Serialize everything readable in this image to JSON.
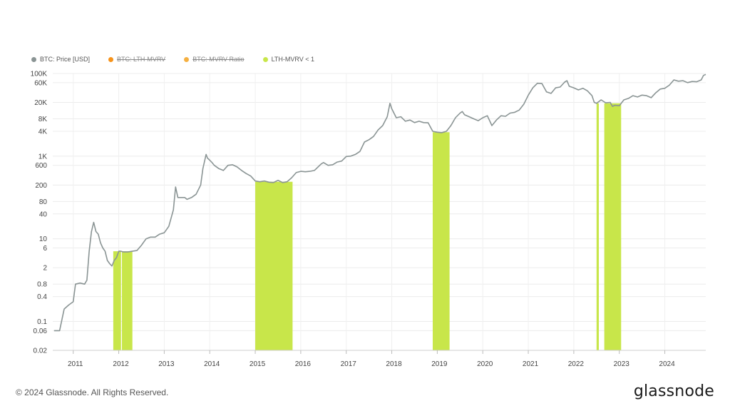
{
  "legend": [
    {
      "label": "BTC: Price [USD]",
      "color": "#8a9494",
      "disabled": false
    },
    {
      "label": "BTC: LTH-MVRV",
      "color": "#f7931a",
      "disabled": true
    },
    {
      "label": "BTC: MVRV Ratio",
      "color": "#f5b041",
      "disabled": true
    },
    {
      "label": "LTH-MVRV < 1",
      "color": "#c8e64a",
      "disabled": false
    }
  ],
  "footer": {
    "copyright": "© 2024 Glassnode. All Rights Reserved.",
    "logo": "glassnode"
  },
  "chart_data": {
    "type": "line",
    "y_scale": "log",
    "ylim": [
      0.02,
      100000
    ],
    "xlim": [
      2010.55,
      2024.9
    ],
    "grid": true,
    "yticks": [
      {
        "value": 100000,
        "label": "100K"
      },
      {
        "value": 60000,
        "label": "60K"
      },
      {
        "value": 20000,
        "label": "20K"
      },
      {
        "value": 8000,
        "label": "8K"
      },
      {
        "value": 4000,
        "label": "4K"
      },
      {
        "value": 1000,
        "label": "1K"
      },
      {
        "value": 600,
        "label": "600"
      },
      {
        "value": 200,
        "label": "200"
      },
      {
        "value": 80,
        "label": "80"
      },
      {
        "value": 40,
        "label": "40"
      },
      {
        "value": 10,
        "label": "10"
      },
      {
        "value": 6,
        "label": "6"
      },
      {
        "value": 2,
        "label": "2"
      },
      {
        "value": 0.8,
        "label": "0.8"
      },
      {
        "value": 0.4,
        "label": "0.4"
      },
      {
        "value": 0.1,
        "label": "0.1"
      },
      {
        "value": 0.06,
        "label": "0.06"
      },
      {
        "value": 0.02,
        "label": "0.02"
      }
    ],
    "xticks": [
      {
        "value": 2011,
        "label": "2011"
      },
      {
        "value": 2012,
        "label": "2012"
      },
      {
        "value": 2013,
        "label": "2013"
      },
      {
        "value": 2014,
        "label": "2014"
      },
      {
        "value": 2015,
        "label": "2015"
      },
      {
        "value": 2016,
        "label": "2016"
      },
      {
        "value": 2017,
        "label": "2017"
      },
      {
        "value": 2018,
        "label": "2018"
      },
      {
        "value": 2019,
        "label": "2019"
      },
      {
        "value": 2020,
        "label": "2020"
      },
      {
        "value": 2021,
        "label": "2021"
      },
      {
        "value": 2022,
        "label": "2022"
      },
      {
        "value": 2023,
        "label": "2023"
      },
      {
        "value": 2024,
        "label": "2024"
      }
    ],
    "series": [
      {
        "name": "BTC: Price [USD]",
        "color": "#8a9494",
        "points": [
          [
            2010.58,
            0.06
          ],
          [
            2010.7,
            0.06
          ],
          [
            2010.8,
            0.2
          ],
          [
            2010.9,
            0.25
          ],
          [
            2011.0,
            0.3
          ],
          [
            2011.05,
            0.8
          ],
          [
            2011.15,
            0.85
          ],
          [
            2011.25,
            0.8
          ],
          [
            2011.3,
            1
          ],
          [
            2011.35,
            5
          ],
          [
            2011.4,
            15
          ],
          [
            2011.45,
            25
          ],
          [
            2011.5,
            15
          ],
          [
            2011.55,
            13
          ],
          [
            2011.6,
            8
          ],
          [
            2011.65,
            6
          ],
          [
            2011.7,
            5
          ],
          [
            2011.75,
            3
          ],
          [
            2011.8,
            2.5
          ],
          [
            2011.85,
            2.2
          ],
          [
            2011.9,
            3
          ],
          [
            2011.95,
            3.5
          ],
          [
            2012.0,
            5
          ],
          [
            2012.05,
            5
          ],
          [
            2012.1,
            4.8
          ],
          [
            2012.2,
            4.8
          ],
          [
            2012.3,
            5
          ],
          [
            2012.4,
            5.2
          ],
          [
            2012.5,
            7
          ],
          [
            2012.6,
            10
          ],
          [
            2012.7,
            11
          ],
          [
            2012.8,
            11
          ],
          [
            2012.9,
            13
          ],
          [
            2013.0,
            14
          ],
          [
            2013.1,
            20
          ],
          [
            2013.2,
            50
          ],
          [
            2013.25,
            180
          ],
          [
            2013.3,
            100
          ],
          [
            2013.35,
            100
          ],
          [
            2013.45,
            100
          ],
          [
            2013.5,
            90
          ],
          [
            2013.6,
            100
          ],
          [
            2013.7,
            120
          ],
          [
            2013.8,
            200
          ],
          [
            2013.85,
            500
          ],
          [
            2013.92,
            1100
          ],
          [
            2013.95,
            900
          ],
          [
            2014.0,
            800
          ],
          [
            2014.05,
            700
          ],
          [
            2014.1,
            600
          ],
          [
            2014.2,
            500
          ],
          [
            2014.3,
            450
          ],
          [
            2014.4,
            600
          ],
          [
            2014.5,
            620
          ],
          [
            2014.6,
            550
          ],
          [
            2014.7,
            450
          ],
          [
            2014.8,
            380
          ],
          [
            2014.9,
            330
          ],
          [
            2015.0,
            250
          ],
          [
            2015.1,
            240
          ],
          [
            2015.2,
            250
          ],
          [
            2015.3,
            235
          ],
          [
            2015.4,
            230
          ],
          [
            2015.5,
            260
          ],
          [
            2015.6,
            230
          ],
          [
            2015.7,
            240
          ],
          [
            2015.8,
            300
          ],
          [
            2015.9,
            400
          ],
          [
            2016.0,
            430
          ],
          [
            2016.1,
            420
          ],
          [
            2016.2,
            430
          ],
          [
            2016.3,
            450
          ],
          [
            2016.45,
            650
          ],
          [
            2016.5,
            700
          ],
          [
            2016.6,
            600
          ],
          [
            2016.7,
            620
          ],
          [
            2016.8,
            720
          ],
          [
            2016.9,
            760
          ],
          [
            2017.0,
            980
          ],
          [
            2017.1,
            1000
          ],
          [
            2017.2,
            1100
          ],
          [
            2017.3,
            1300
          ],
          [
            2017.4,
            2200
          ],
          [
            2017.5,
            2500
          ],
          [
            2017.6,
            3000
          ],
          [
            2017.7,
            4300
          ],
          [
            2017.8,
            5500
          ],
          [
            2017.9,
            9000
          ],
          [
            2017.96,
            19000
          ],
          [
            2018.0,
            14000
          ],
          [
            2018.1,
            8500
          ],
          [
            2018.2,
            9000
          ],
          [
            2018.3,
            7000
          ],
          [
            2018.4,
            7500
          ],
          [
            2018.5,
            6500
          ],
          [
            2018.6,
            7000
          ],
          [
            2018.7,
            6500
          ],
          [
            2018.8,
            6400
          ],
          [
            2018.9,
            4000
          ],
          [
            2019.0,
            3800
          ],
          [
            2019.1,
            3700
          ],
          [
            2019.2,
            4000
          ],
          [
            2019.3,
            5500
          ],
          [
            2019.4,
            8500
          ],
          [
            2019.5,
            11000
          ],
          [
            2019.55,
            12000
          ],
          [
            2019.6,
            10000
          ],
          [
            2019.7,
            9000
          ],
          [
            2019.8,
            8000
          ],
          [
            2019.9,
            7200
          ],
          [
            2020.0,
            8500
          ],
          [
            2020.1,
            9500
          ],
          [
            2020.2,
            5500
          ],
          [
            2020.3,
            7500
          ],
          [
            2020.4,
            9500
          ],
          [
            2020.5,
            9200
          ],
          [
            2020.6,
            11000
          ],
          [
            2020.7,
            11500
          ],
          [
            2020.8,
            13000
          ],
          [
            2020.9,
            18000
          ],
          [
            2021.0,
            30000
          ],
          [
            2021.1,
            45000
          ],
          [
            2021.2,
            58000
          ],
          [
            2021.3,
            57000
          ],
          [
            2021.4,
            36000
          ],
          [
            2021.5,
            33000
          ],
          [
            2021.6,
            45000
          ],
          [
            2021.7,
            47000
          ],
          [
            2021.8,
            62000
          ],
          [
            2021.85,
            67000
          ],
          [
            2021.9,
            49000
          ],
          [
            2022.0,
            45000
          ],
          [
            2022.1,
            40000
          ],
          [
            2022.2,
            44000
          ],
          [
            2022.3,
            38000
          ],
          [
            2022.4,
            29000
          ],
          [
            2022.45,
            20000
          ],
          [
            2022.5,
            19000
          ],
          [
            2022.6,
            23000
          ],
          [
            2022.7,
            19500
          ],
          [
            2022.8,
            20000
          ],
          [
            2022.85,
            16000
          ],
          [
            2022.9,
            17000
          ],
          [
            2023.0,
            16600
          ],
          [
            2023.1,
            23000
          ],
          [
            2023.2,
            25000
          ],
          [
            2023.3,
            29000
          ],
          [
            2023.4,
            27000
          ],
          [
            2023.5,
            30000
          ],
          [
            2023.6,
            29000
          ],
          [
            2023.7,
            26000
          ],
          [
            2023.8,
            34000
          ],
          [
            2023.9,
            42000
          ],
          [
            2024.0,
            44000
          ],
          [
            2024.1,
            52000
          ],
          [
            2024.2,
            70000
          ],
          [
            2024.3,
            65000
          ],
          [
            2024.4,
            67000
          ],
          [
            2024.5,
            60000
          ],
          [
            2024.6,
            64000
          ],
          [
            2024.7,
            63000
          ],
          [
            2024.8,
            70000
          ],
          [
            2024.85,
            90000
          ],
          [
            2024.9,
            95000
          ]
        ]
      }
    ],
    "highlight_bands": {
      "name": "LTH-MVRV < 1",
      "color": "#c8e64a",
      "bands": [
        {
          "start": 2011.88,
          "end": 2012.05,
          "top": 5
        },
        {
          "start": 2012.07,
          "end": 2012.3,
          "top": 5
        },
        {
          "start": 2015.0,
          "end": 2015.82,
          "top": 240
        },
        {
          "start": 2018.9,
          "end": 2019.27,
          "top": 3800
        },
        {
          "start": 2022.5,
          "end": 2022.55,
          "top": 19000
        },
        {
          "start": 2022.67,
          "end": 2023.04,
          "top": 19000
        }
      ]
    }
  }
}
